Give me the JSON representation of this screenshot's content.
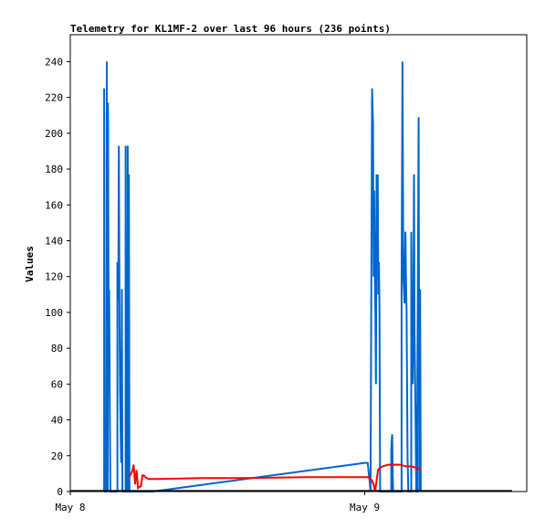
{
  "chart_data": {
    "type": "line",
    "title": "Telemetry for KL1MF-2 over last 96 hours (236 points)",
    "xlabel": "",
    "ylabel": "Values",
    "xlim": [
      0,
      1.55
    ],
    "ylim": [
      0,
      255
    ],
    "x_ticks": [
      {
        "label": "May 8",
        "x": 0
      },
      {
        "label": "May 9",
        "x": 1.0
      }
    ],
    "y_ticks": [
      0,
      20,
      40,
      60,
      80,
      100,
      120,
      140,
      160,
      180,
      200,
      220,
      240
    ],
    "grid": false,
    "legend": "none",
    "series": [
      {
        "color": "#0066cc",
        "points": [
          [
            0.115,
            0
          ],
          [
            0.115,
            225
          ],
          [
            0.118,
            0
          ],
          [
            0.124,
            0
          ],
          [
            0.124,
            240
          ],
          [
            0.127,
            0
          ],
          [
            0.128,
            217
          ],
          [
            0.13,
            112
          ],
          [
            0.132,
            112
          ],
          [
            0.134,
            56
          ],
          [
            0.136,
            0
          ],
          [
            0.16,
            0
          ],
          [
            0.16,
            128
          ],
          [
            0.163,
            107
          ],
          [
            0.165,
            193
          ],
          [
            0.167,
            96
          ],
          [
            0.169,
            56
          ],
          [
            0.171,
            32
          ],
          [
            0.173,
            16
          ],
          [
            0.175,
            113
          ],
          [
            0.177,
            0
          ],
          [
            0.188,
            0
          ],
          [
            0.188,
            193
          ],
          [
            0.19,
            16
          ],
          [
            0.193,
            0
          ],
          [
            0.195,
            0
          ],
          [
            0.195,
            193
          ],
          [
            0.197,
            16
          ],
          [
            0.199,
            177
          ],
          [
            0.201,
            0
          ],
          [
            0.28,
            0
          ],
          [
            1.0,
            16
          ],
          [
            1.01,
            16
          ],
          [
            1.02,
            0
          ],
          [
            1.02,
            16
          ],
          [
            1.025,
            225
          ],
          [
            1.028,
            205
          ],
          [
            1.03,
            120
          ],
          [
            1.032,
            168
          ],
          [
            1.034,
            125
          ],
          [
            1.036,
            100
          ],
          [
            1.038,
            60
          ],
          [
            1.04,
            177
          ],
          [
            1.042,
            150
          ],
          [
            1.044,
            177
          ],
          [
            1.046,
            110
          ],
          [
            1.048,
            128
          ],
          [
            1.05,
            100
          ],
          [
            1.052,
            0
          ],
          [
            1.09,
            0
          ],
          [
            1.09,
            24
          ],
          [
            1.093,
            32
          ],
          [
            1.096,
            0
          ],
          [
            1.125,
            0
          ],
          [
            1.125,
            113
          ],
          [
            1.128,
            240
          ],
          [
            1.131,
            120
          ],
          [
            1.133,
            113
          ],
          [
            1.135,
            105
          ],
          [
            1.138,
            145
          ],
          [
            1.14,
            120
          ],
          [
            1.142,
            100
          ],
          [
            1.145,
            20
          ],
          [
            1.148,
            0
          ],
          [
            1.158,
            0
          ],
          [
            1.158,
            145
          ],
          [
            1.161,
            72
          ],
          [
            1.163,
            60
          ],
          [
            1.165,
            97
          ],
          [
            1.167,
            177
          ],
          [
            1.169,
            88
          ],
          [
            1.171,
            64
          ],
          [
            1.173,
            32
          ],
          [
            1.175,
            0
          ],
          [
            1.178,
            0
          ],
          [
            1.178,
            33
          ],
          [
            1.18,
            105
          ],
          [
            1.183,
            209
          ],
          [
            1.185,
            0
          ],
          [
            1.188,
            113
          ],
          [
            1.19,
            0
          ]
        ]
      },
      {
        "color": "#ff0000",
        "points": [
          [
            0.2,
            8
          ],
          [
            0.21,
            11
          ],
          [
            0.215,
            15
          ],
          [
            0.22,
            4
          ],
          [
            0.225,
            12
          ],
          [
            0.23,
            2
          ],
          [
            0.24,
            3
          ],
          [
            0.245,
            9
          ],
          [
            0.25,
            9
          ],
          [
            0.255,
            8
          ],
          [
            0.265,
            7
          ],
          [
            0.3,
            7
          ],
          [
            0.45,
            7.5
          ],
          [
            0.6,
            7.5
          ],
          [
            0.8,
            8
          ],
          [
            0.9,
            8
          ],
          [
            1.0,
            8
          ],
          [
            1.015,
            8
          ],
          [
            1.025,
            6
          ],
          [
            1.03,
            4
          ],
          [
            1.035,
            0
          ],
          [
            1.04,
            6
          ],
          [
            1.045,
            12
          ],
          [
            1.05,
            13
          ],
          [
            1.06,
            14
          ],
          [
            1.08,
            15
          ],
          [
            1.1,
            15
          ],
          [
            1.12,
            15
          ],
          [
            1.14,
            14
          ],
          [
            1.16,
            14
          ],
          [
            1.18,
            13
          ],
          [
            1.19,
            12
          ]
        ]
      },
      {
        "color": "#000000",
        "points": [
          [
            0.0,
            0.3
          ],
          [
            1.5,
            0.3
          ]
        ]
      }
    ]
  }
}
